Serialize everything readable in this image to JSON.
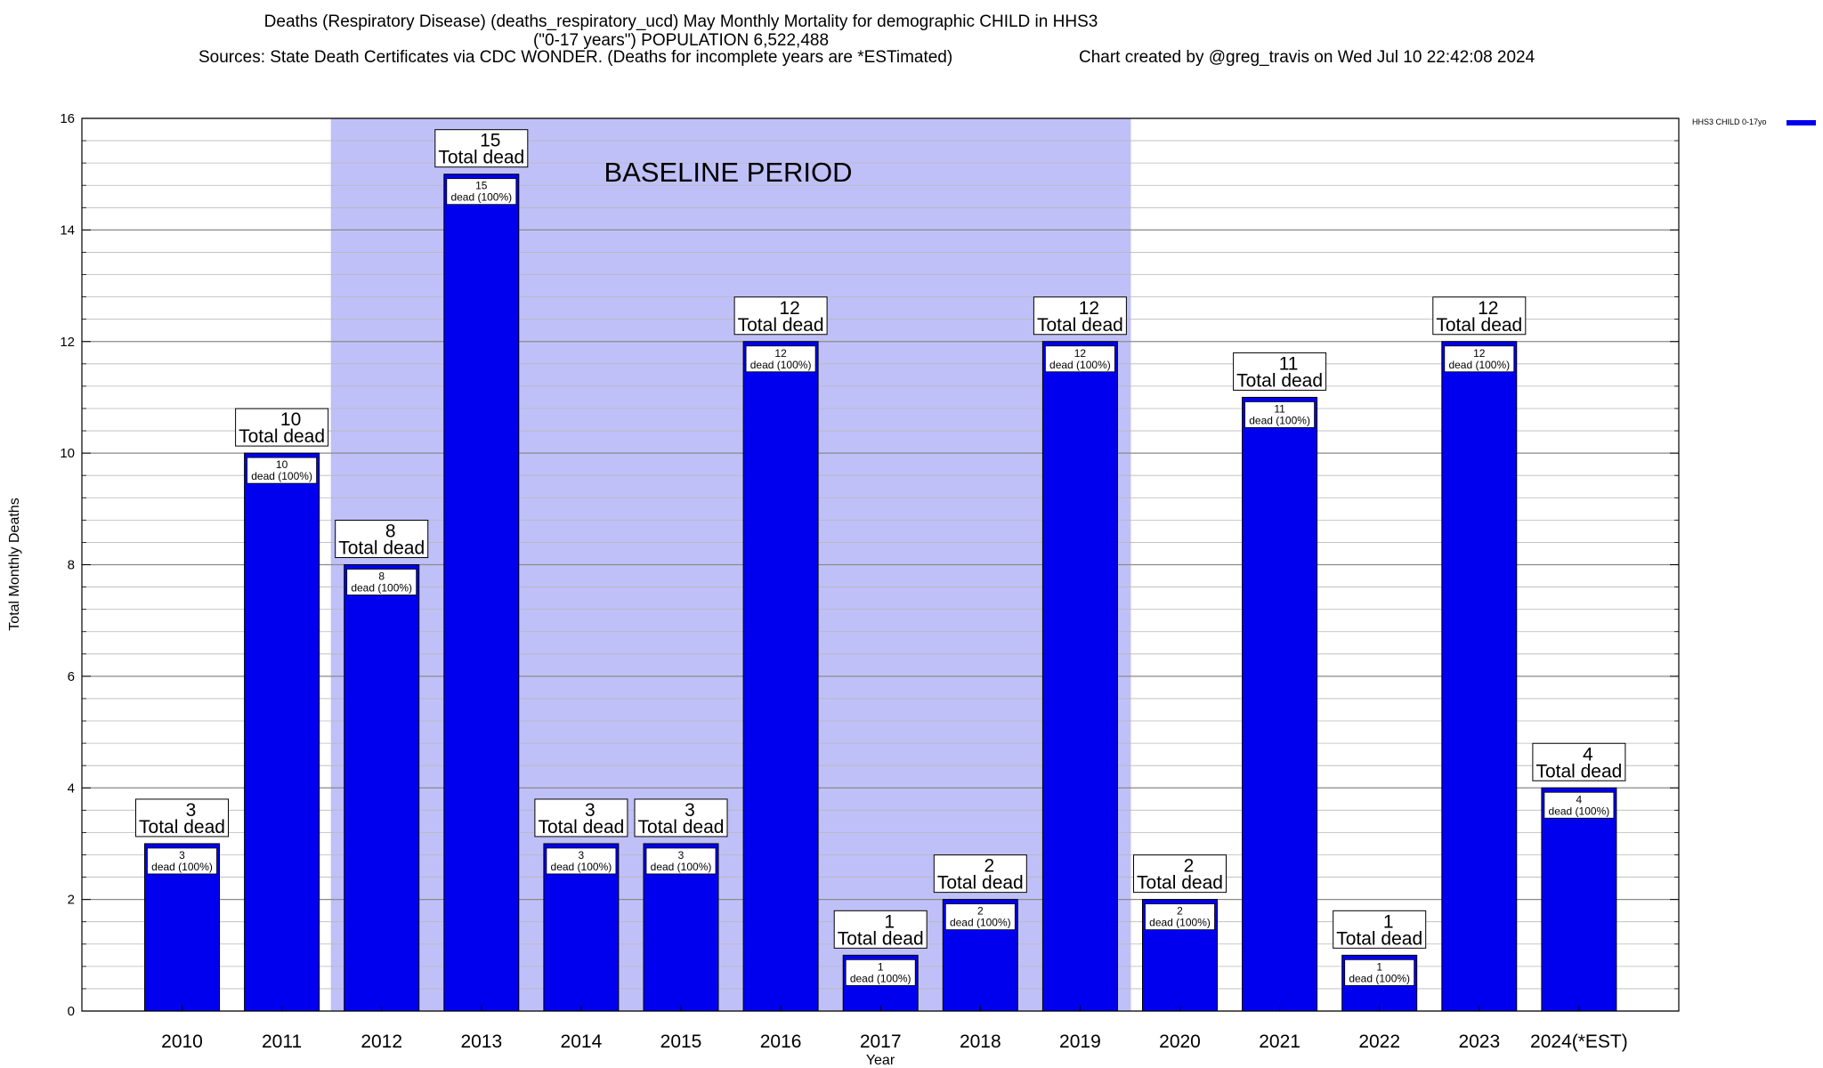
{
  "title_line1": "Deaths (Respiratory Disease) (deaths_respiratory_ucd) May Monthly Mortality for demographic CHILD in HHS3",
  "title_line2": "(\"0-17 years\") POPULATION 6,522,488",
  "sources": "Sources: State Death Certificates via CDC WONDER. (Deaths for incomplete years are *ESTimated)",
  "credit": "Chart created by @greg_travis on Wed Jul 10 22:42:08 2024",
  "chart_data": {
    "type": "bar",
    "categories": [
      "2010",
      "2011",
      "2012",
      "2013",
      "2014",
      "2015",
      "2016",
      "2017",
      "2018",
      "2019",
      "2020",
      "2021",
      "2022",
      "2023",
      "2024(*EST)"
    ],
    "series": [
      {
        "name": "HHS3 CHILD 0-17yo",
        "color": "#0000ee",
        "values": [
          3,
          10,
          8,
          15,
          3,
          3,
          12,
          1,
          2,
          12,
          2,
          11,
          1,
          12,
          4
        ]
      }
    ],
    "total_label": "Total dead",
    "inner_label": "dead (100%)",
    "xlabel": "Year",
    "ylabel": "Total Monthly Deaths",
    "ylim": [
      0,
      16
    ],
    "yticks": [
      0,
      2,
      4,
      6,
      8,
      10,
      12,
      14,
      16
    ],
    "grid": true,
    "legend_position": "top-right, outside plot",
    "baseline_period": {
      "label": "BASELINE PERIOD",
      "start": "2012",
      "end": "2019",
      "color": "#c0c0f8"
    }
  }
}
